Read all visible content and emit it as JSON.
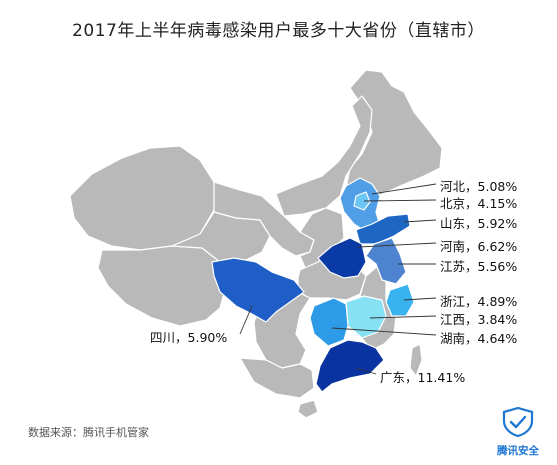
{
  "title": "2017年上半年病毒感染用户最多十大省份（直辖市）",
  "regions": [
    {
      "key": "hebei",
      "name": "河北",
      "value": "5.08%",
      "color": "#4f9ee6"
    },
    {
      "key": "beijing",
      "name": "北京",
      "value": "4.15%",
      "color": "#6cc6f3"
    },
    {
      "key": "shandong",
      "name": "山东",
      "value": "5.92%",
      "color": "#1e66c4"
    },
    {
      "key": "henan",
      "name": "河南",
      "value": "6.62%",
      "color": "#0a3aa6"
    },
    {
      "key": "jiangsu",
      "name": "江苏",
      "value": "5.56%",
      "color": "#4e83cf"
    },
    {
      "key": "zhejiang",
      "name": "浙江",
      "value": "4.89%",
      "color": "#38b3ef"
    },
    {
      "key": "jiangxi",
      "name": "江西",
      "value": "3.84%",
      "color": "#86e1f4"
    },
    {
      "key": "hunan",
      "name": "湖南",
      "value": "4.64%",
      "color": "#2d9be8"
    },
    {
      "key": "sichuan",
      "name": "四川",
      "value": "5.90%",
      "color": "#1f5ec7"
    },
    {
      "key": "guangdong",
      "name": "广东",
      "value": "11.41%",
      "color": "#0933a0"
    }
  ],
  "source": "数据来源：腾讯手机管家",
  "logo": {
    "text": "腾讯安全",
    "color": "#1d76d2",
    "icon": "shield-check-icon"
  },
  "base_color": "#b9b9b9",
  "border_color": "#ffffff"
}
